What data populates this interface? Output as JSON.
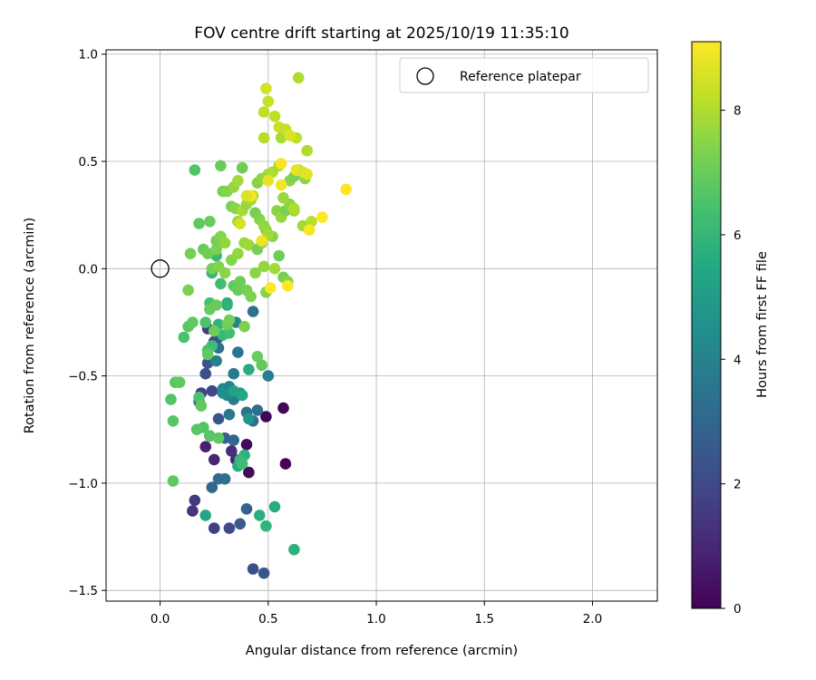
{
  "chart_data": {
    "type": "scatter",
    "title": "FOV centre drift starting at 2025/10/19 11:35:10",
    "xlabel": "Angular distance from reference (arcmin)",
    "ylabel": "Rotation from reference (arcmin)",
    "xlim": [
      -0.25,
      2.3
    ],
    "ylim": [
      -1.55,
      1.02
    ],
    "xticks": [
      0.0,
      0.5,
      1.0,
      1.5,
      2.0
    ],
    "xtick_labels": [
      "0.0",
      "0.5",
      "1.0",
      "1.5",
      "2.0"
    ],
    "yticks": [
      -1.5,
      -1.0,
      -0.5,
      0.0,
      0.5,
      1.0
    ],
    "ytick_labels": [
      "−1.5",
      "−1.0",
      "−0.5",
      "0.0",
      "0.5",
      "1.0"
    ],
    "grid": true,
    "legend": {
      "location": "top-right",
      "entries": [
        "Reference platepar"
      ]
    },
    "reference_point": {
      "x": 0.0,
      "y": 0.0
    },
    "colorbar": {
      "label": "Hours from first FF file",
      "range": [
        0,
        9.1
      ],
      "ticks": [
        0,
        2,
        4,
        6,
        8
      ],
      "tick_labels": [
        "0",
        "2",
        "4",
        "6",
        "8"
      ],
      "colormap": "viridis"
    },
    "points": [
      [
        0.49,
        -0.69,
        0.1
      ],
      [
        0.57,
        -0.65,
        0.1
      ],
      [
        0.58,
        -0.91,
        0.1
      ],
      [
        0.4,
        -0.82,
        0.2
      ],
      [
        0.41,
        -0.95,
        0.2
      ],
      [
        0.21,
        -0.83,
        0.8
      ],
      [
        0.25,
        -0.89,
        0.9
      ],
      [
        0.35,
        -0.89,
        1.0
      ],
      [
        0.33,
        -0.85,
        1.2
      ],
      [
        0.15,
        -1.13,
        1.4
      ],
      [
        0.16,
        -1.08,
        1.5
      ],
      [
        0.25,
        -1.21,
        1.7
      ],
      [
        0.32,
        -1.21,
        2.0
      ],
      [
        0.43,
        -1.4,
        2.2
      ],
      [
        0.48,
        -1.42,
        2.4
      ],
      [
        0.37,
        -1.19,
        2.6
      ],
      [
        0.4,
        -1.12,
        2.8
      ],
      [
        0.24,
        -1.02,
        3.0
      ],
      [
        0.27,
        -0.98,
        3.2
      ],
      [
        0.3,
        -0.98,
        3.3
      ],
      [
        0.19,
        -0.58,
        1.8
      ],
      [
        0.24,
        -0.57,
        2.0
      ],
      [
        0.21,
        -0.49,
        2.2
      ],
      [
        0.22,
        -0.44,
        2.4
      ],
      [
        0.27,
        -0.7,
        2.5
      ],
      [
        0.23,
        -0.78,
        2.6
      ],
      [
        0.3,
        -0.79,
        2.8
      ],
      [
        0.34,
        -0.8,
        3.0
      ],
      [
        0.43,
        -0.71,
        3.2
      ],
      [
        0.45,
        -0.66,
        3.3
      ],
      [
        0.4,
        -0.67,
        3.5
      ],
      [
        0.32,
        -0.68,
        3.6
      ],
      [
        0.22,
        -0.28,
        1.6
      ],
      [
        0.25,
        -0.34,
        2.0
      ],
      [
        0.27,
        -0.32,
        2.4
      ],
      [
        0.34,
        -0.61,
        3.8
      ],
      [
        0.32,
        -0.55,
        4.0
      ],
      [
        0.29,
        -0.56,
        4.1
      ],
      [
        0.26,
        -0.43,
        3.9
      ],
      [
        0.18,
        -0.62,
        3.6
      ],
      [
        0.27,
        -0.37,
        3.4
      ],
      [
        0.34,
        -0.49,
        3.7
      ],
      [
        0.36,
        -0.39,
        3.5
      ],
      [
        0.43,
        -0.2,
        3.4
      ],
      [
        0.5,
        -0.5,
        3.9
      ],
      [
        0.35,
        -0.25,
        4.2
      ],
      [
        0.31,
        -0.59,
        4.3
      ],
      [
        0.29,
        -0.58,
        4.5
      ],
      [
        0.37,
        -0.58,
        5.0
      ],
      [
        0.34,
        -0.57,
        5.2
      ],
      [
        0.41,
        -0.7,
        4.8
      ],
      [
        0.38,
        -0.59,
        5.4
      ],
      [
        0.36,
        -0.92,
        5.6
      ],
      [
        0.39,
        -0.87,
        5.8
      ],
      [
        0.37,
        -0.89,
        6.0
      ],
      [
        0.38,
        -0.91,
        6.2
      ],
      [
        0.21,
        -1.15,
        5.4
      ],
      [
        0.46,
        -1.15,
        5.7
      ],
      [
        0.49,
        -1.2,
        5.9
      ],
      [
        0.53,
        -1.11,
        5.6
      ],
      [
        0.62,
        -1.31,
        5.8
      ],
      [
        0.41,
        -0.47,
        5.6
      ],
      [
        0.31,
        -0.16,
        5.7
      ],
      [
        0.27,
        -0.26,
        5.9
      ],
      [
        0.29,
        -0.31,
        6.1
      ],
      [
        0.24,
        -0.36,
        6.2
      ],
      [
        0.32,
        -0.3,
        6.3
      ],
      [
        0.22,
        -0.38,
        6.4
      ],
      [
        0.24,
        -0.02,
        6.0
      ],
      [
        0.26,
        0.06,
        6.1
      ],
      [
        0.28,
        -0.07,
        6.3
      ],
      [
        0.31,
        -0.17,
        5.8
      ],
      [
        0.23,
        -0.16,
        6.4
      ],
      [
        0.21,
        -0.25,
        6.5
      ],
      [
        0.18,
        -0.6,
        6.5
      ],
      [
        0.2,
        -0.74,
        6.6
      ],
      [
        0.23,
        -0.78,
        6.7
      ],
      [
        0.27,
        -0.79,
        6.8
      ],
      [
        0.17,
        -0.75,
        6.7
      ],
      [
        0.05,
        -0.61,
        6.6
      ],
      [
        0.06,
        -0.71,
        6.7
      ],
      [
        0.06,
        -0.99,
        6.8
      ],
      [
        0.07,
        -0.53,
        6.7
      ],
      [
        0.09,
        -0.53,
        6.8
      ],
      [
        0.11,
        -0.32,
        6.5
      ],
      [
        0.13,
        -0.27,
        6.7
      ],
      [
        0.15,
        -0.25,
        6.8
      ],
      [
        0.19,
        -0.64,
        6.9
      ],
      [
        0.22,
        -0.4,
        6.9
      ],
      [
        0.23,
        -0.19,
        7.0
      ],
      [
        0.25,
        -0.29,
        7.1
      ],
      [
        0.26,
        -0.17,
        7.0
      ],
      [
        0.31,
        -0.26,
        7.1
      ],
      [
        0.32,
        -0.24,
        7.2
      ],
      [
        0.39,
        -0.27,
        7.3
      ],
      [
        0.34,
        -0.08,
        6.9
      ],
      [
        0.36,
        -0.1,
        7.0
      ],
      [
        0.37,
        -0.06,
        7.1
      ],
      [
        0.4,
        -0.1,
        7.2
      ],
      [
        0.42,
        -0.13,
        7.3
      ],
      [
        0.45,
        -0.41,
        7.0
      ],
      [
        0.47,
        -0.45,
        6.9
      ],
      [
        0.49,
        -0.11,
        7.4
      ],
      [
        0.13,
        -0.1,
        7.3
      ],
      [
        0.14,
        0.07,
        7.2
      ],
      [
        0.2,
        0.09,
        7.0
      ],
      [
        0.22,
        0.07,
        7.1
      ],
      [
        0.24,
        0.0,
        7.2
      ],
      [
        0.26,
        0.09,
        7.3
      ],
      [
        0.27,
        0.01,
        7.4
      ],
      [
        0.3,
        -0.02,
        7.5
      ],
      [
        0.33,
        0.04,
        7.4
      ],
      [
        0.36,
        0.07,
        7.6
      ],
      [
        0.39,
        0.12,
        7.7
      ],
      [
        0.41,
        0.11,
        7.8
      ],
      [
        0.45,
        0.09,
        7.2
      ],
      [
        0.47,
        0.12,
        7.4
      ],
      [
        0.49,
        0.18,
        7.3
      ],
      [
        0.52,
        0.15,
        7.5
      ],
      [
        0.55,
        0.06,
        7.1
      ],
      [
        0.57,
        -0.04,
        7.2
      ],
      [
        0.59,
        -0.06,
        7.4
      ],
      [
        0.16,
        0.46,
        6.6
      ],
      [
        0.18,
        0.21,
        6.8
      ],
      [
        0.23,
        0.22,
        7.0
      ],
      [
        0.26,
        0.13,
        7.2
      ],
      [
        0.28,
        0.15,
        7.4
      ],
      [
        0.3,
        0.12,
        7.6
      ],
      [
        0.33,
        0.29,
        7.3
      ],
      [
        0.35,
        0.28,
        7.5
      ],
      [
        0.36,
        0.22,
        7.7
      ],
      [
        0.38,
        0.27,
        7.9
      ],
      [
        0.4,
        0.3,
        7.6
      ],
      [
        0.42,
        0.32,
        7.8
      ],
      [
        0.44,
        0.26,
        7.2
      ],
      [
        0.46,
        0.23,
        7.4
      ],
      [
        0.48,
        0.2,
        7.6
      ],
      [
        0.5,
        0.16,
        7.8
      ],
      [
        0.54,
        0.27,
        7.5
      ],
      [
        0.56,
        0.24,
        7.7
      ],
      [
        0.58,
        0.27,
        7.3
      ],
      [
        0.6,
        0.3,
        7.5
      ],
      [
        0.62,
        0.27,
        7.6
      ],
      [
        0.28,
        0.48,
        7.0
      ],
      [
        0.29,
        0.36,
        7.2
      ],
      [
        0.31,
        0.36,
        7.4
      ],
      [
        0.34,
        0.38,
        7.6
      ],
      [
        0.36,
        0.41,
        7.8
      ],
      [
        0.38,
        0.47,
        7.1
      ],
      [
        0.41,
        0.33,
        7.9
      ],
      [
        0.43,
        0.34,
        8.0
      ],
      [
        0.45,
        0.4,
        7.4
      ],
      [
        0.47,
        0.42,
        7.6
      ],
      [
        0.5,
        0.44,
        7.8
      ],
      [
        0.52,
        0.45,
        8.0
      ],
      [
        0.55,
        0.48,
        7.9
      ],
      [
        0.57,
        0.33,
        7.7
      ],
      [
        0.6,
        0.41,
        7.5
      ],
      [
        0.62,
        0.43,
        7.3
      ],
      [
        0.64,
        0.46,
        7.7
      ],
      [
        0.67,
        0.42,
        7.5
      ],
      [
        0.68,
        0.55,
        8.0
      ],
      [
        0.63,
        0.61,
        8.2
      ],
      [
        0.66,
        0.2,
        7.8
      ],
      [
        0.7,
        0.22,
        8.1
      ],
      [
        0.48,
        0.61,
        8.1
      ],
      [
        0.48,
        0.73,
        8.2
      ],
      [
        0.5,
        0.78,
        8.3
      ],
      [
        0.49,
        0.84,
        8.5
      ],
      [
        0.53,
        0.71,
        8.2
      ],
      [
        0.55,
        0.66,
        8.4
      ],
      [
        0.56,
        0.61,
        7.9
      ],
      [
        0.58,
        0.65,
        8.3
      ],
      [
        0.64,
        0.89,
        8.0
      ],
      [
        0.6,
        0.62,
        8.6
      ],
      [
        0.62,
        0.28,
        8.0
      ],
      [
        0.63,
        0.46,
        8.8
      ],
      [
        0.66,
        0.45,
        8.6
      ],
      [
        0.68,
        0.44,
        8.7
      ],
      [
        0.69,
        0.18,
        9.0
      ],
      [
        0.75,
        0.24,
        9.1
      ],
      [
        0.56,
        0.49,
        9.0
      ],
      [
        0.56,
        0.39,
        8.9
      ],
      [
        0.5,
        0.41,
        8.8
      ],
      [
        0.47,
        0.13,
        8.9
      ],
      [
        0.51,
        -0.09,
        9.1
      ],
      [
        0.59,
        -0.08,
        9.1
      ],
      [
        0.86,
        0.37,
        9.1
      ],
      [
        0.42,
        0.34,
        9.0
      ],
      [
        0.4,
        0.34,
        8.6
      ],
      [
        0.37,
        0.21,
        8.5
      ],
      [
        0.44,
        -0.02,
        7.5
      ],
      [
        0.48,
        0.01,
        7.6
      ],
      [
        0.53,
        0.0,
        7.8
      ]
    ]
  }
}
